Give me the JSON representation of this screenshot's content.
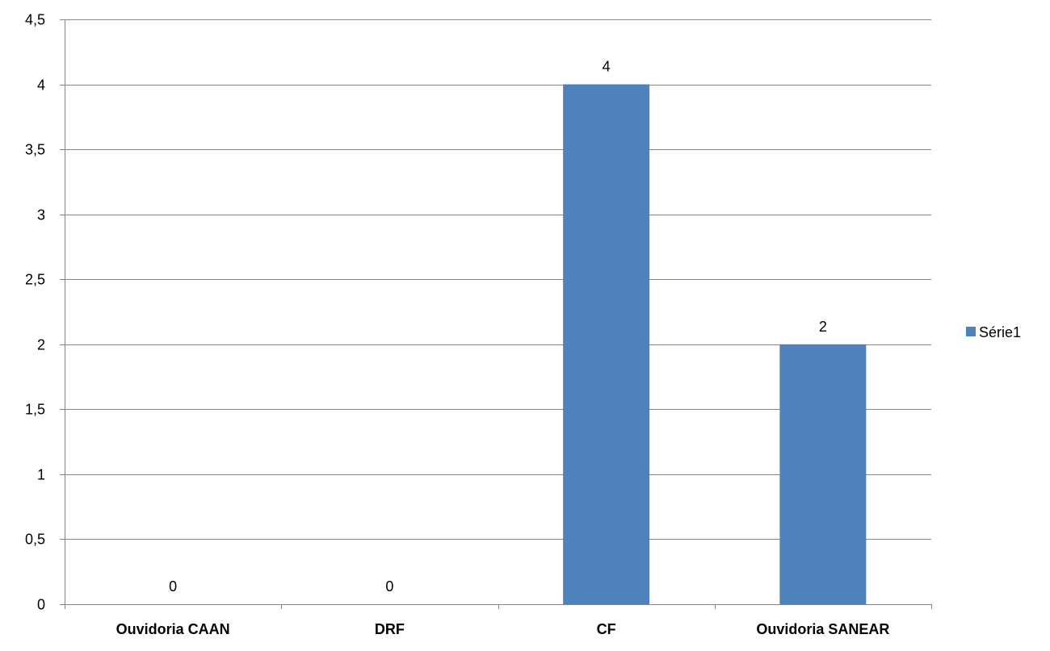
{
  "chart_data": {
    "type": "bar",
    "categories": [
      "Ouvidoria CAAN",
      "DRF",
      "CF",
      "Ouvidoria SANEAR"
    ],
    "series": [
      {
        "name": "Série1",
        "values": [
          0,
          0,
          4,
          2
        ],
        "color": "#4F81BD"
      }
    ],
    "data_labels": [
      "0",
      "0",
      "4",
      "2"
    ],
    "yticks": [
      "0",
      "0,5",
      "1",
      "1,5",
      "2",
      "2,5",
      "3",
      "3,5",
      "4",
      "4,5"
    ],
    "ylim": [
      0,
      4.5
    ],
    "grid": true,
    "legend": {
      "position": "right",
      "entries": [
        "Série1"
      ]
    },
    "title": "",
    "xlabel": "",
    "ylabel": ""
  }
}
